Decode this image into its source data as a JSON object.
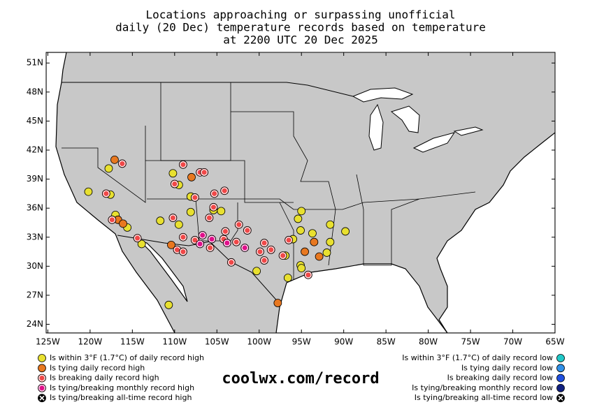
{
  "chart_data": {
    "type": "scatter",
    "title": [
      "Locations approaching or surpassing unofficial",
      "daily (20 Dec) temperature records based on temperature",
      "at 2200 UTC 20 Dec 2025"
    ],
    "annotation": "coolwx.com/record",
    "xlim": [
      -125.2,
      -65
    ],
    "ylim": [
      23.1,
      52.1
    ],
    "xticks": [
      {
        "value": -125,
        "label": "125W"
      },
      {
        "value": -120,
        "label": "120W"
      },
      {
        "value": -115,
        "label": "115W"
      },
      {
        "value": -110,
        "label": "110W"
      },
      {
        "value": -105,
        "label": "105W"
      },
      {
        "value": -100,
        "label": "100W"
      },
      {
        "value": -95,
        "label": "95W"
      },
      {
        "value": -90,
        "label": "90W"
      },
      {
        "value": -85,
        "label": "85W"
      },
      {
        "value": -80,
        "label": "80W"
      },
      {
        "value": -75,
        "label": "75W"
      },
      {
        "value": -70,
        "label": "70W"
      },
      {
        "value": -65,
        "label": "65W"
      }
    ],
    "yticks": [
      {
        "value": 24,
        "label": "24N"
      },
      {
        "value": 27,
        "label": "27N"
      },
      {
        "value": 30,
        "label": "30N"
      },
      {
        "value": 33,
        "label": "33N"
      },
      {
        "value": 36,
        "label": "36N"
      },
      {
        "value": 39,
        "label": "39N"
      },
      {
        "value": 42,
        "label": "42N"
      },
      {
        "value": 45,
        "label": "45N"
      },
      {
        "value": 48,
        "label": "48N"
      },
      {
        "value": 51,
        "label": "51N"
      }
    ],
    "series": [
      {
        "name": "Is within 3°F (1.7°C) of daily record high",
        "color": "#e8e030",
        "legend": "left",
        "x": [
          -120.2,
          -117.8,
          -117.0,
          -117.6,
          -115.6,
          -113.9,
          -110.7,
          -111.7,
          -110.2,
          -109.5,
          -108.1,
          -109.5,
          -108.1,
          -105.4,
          -104.5,
          -100.3,
          -95.0,
          -95.4,
          -95.1,
          -96.9,
          -95.1,
          -95.0,
          -96.6,
          -93.7,
          -91.6,
          -91.6,
          -92.0,
          -89.8,
          -96.0
        ],
        "y": [
          37.7,
          40.1,
          35.3,
          37.4,
          34.0,
          32.3,
          26.0,
          34.7,
          39.6,
          38.4,
          35.6,
          34.3,
          37.2,
          35.8,
          35.7,
          29.5,
          35.7,
          34.9,
          33.7,
          31.1,
          30.1,
          29.8,
          28.8,
          33.4,
          34.3,
          32.5,
          31.4,
          33.6,
          32.8
        ]
      },
      {
        "name": "Is tying daily record high",
        "color": "#e87820",
        "legend": "left",
        "x": [
          -117.1,
          -108.0,
          -116.7,
          -116.1,
          -110.4,
          -94.6,
          -97.8,
          -93.5,
          -92.9
        ],
        "y": [
          41.0,
          39.2,
          34.8,
          34.4,
          32.2,
          31.5,
          26.2,
          32.5,
          31.0
        ]
      },
      {
        "name": "Is breaking daily record high",
        "color": "#f04848",
        "edge": "#ffffff",
        "legend": "left",
        "x": [
          -116.2,
          -118.1,
          -117.4,
          -114.4,
          -109.0,
          -110.0,
          -107.6,
          -107.0,
          -106.5,
          -105.3,
          -104.1,
          -105.4,
          -105.9,
          -110.2,
          -109.0,
          -109.7,
          -109.0,
          -107.6,
          -105.8,
          -104.2,
          -104.0,
          -102.4,
          -101.4,
          -102.7,
          -99.4,
          -99.9,
          -99.4,
          -103.3,
          -98.6,
          -97.2,
          -96.5,
          -94.2
        ],
        "y": [
          40.6,
          37.5,
          34.8,
          32.9,
          40.5,
          38.5,
          37.1,
          39.7,
          39.7,
          37.5,
          37.8,
          36.1,
          35.0,
          35.0,
          33.0,
          31.7,
          31.5,
          32.7,
          31.9,
          32.8,
          33.6,
          34.3,
          33.7,
          32.5,
          32.4,
          31.5,
          30.6,
          30.4,
          31.7,
          31.1,
          32.7,
          29.1
        ]
      },
      {
        "name": "Is tying/breaking monthly record high",
        "color": "#e0108a",
        "edge": "#ffffff",
        "legend": "left",
        "x": [
          -106.7,
          -105.6,
          -107.0,
          -103.8,
          -101.7
        ],
        "y": [
          33.2,
          32.8,
          32.3,
          32.4,
          31.9
        ]
      },
      {
        "name": "Is tying/breaking all-time record high",
        "color": "#000000",
        "marker": "cross",
        "legend": "left",
        "x": [],
        "y": []
      },
      {
        "name": "Is within 3°F (1.7°C) of daily record low",
        "color": "#20c8c8",
        "legend": "right",
        "x": [],
        "y": []
      },
      {
        "name": "Is tying daily record low",
        "color": "#3090e8",
        "legend": "right",
        "x": [],
        "y": []
      },
      {
        "name": "Is breaking daily record low",
        "color": "#2050e0",
        "legend": "right",
        "x": [],
        "y": []
      },
      {
        "name": "Is tying/breaking monthly record low",
        "color": "#102080",
        "legend": "right",
        "x": [],
        "y": []
      },
      {
        "name": "Is tying/breaking all-time record low",
        "color": "#000000",
        "marker": "cross",
        "legend": "right",
        "x": [],
        "y": []
      }
    ]
  }
}
